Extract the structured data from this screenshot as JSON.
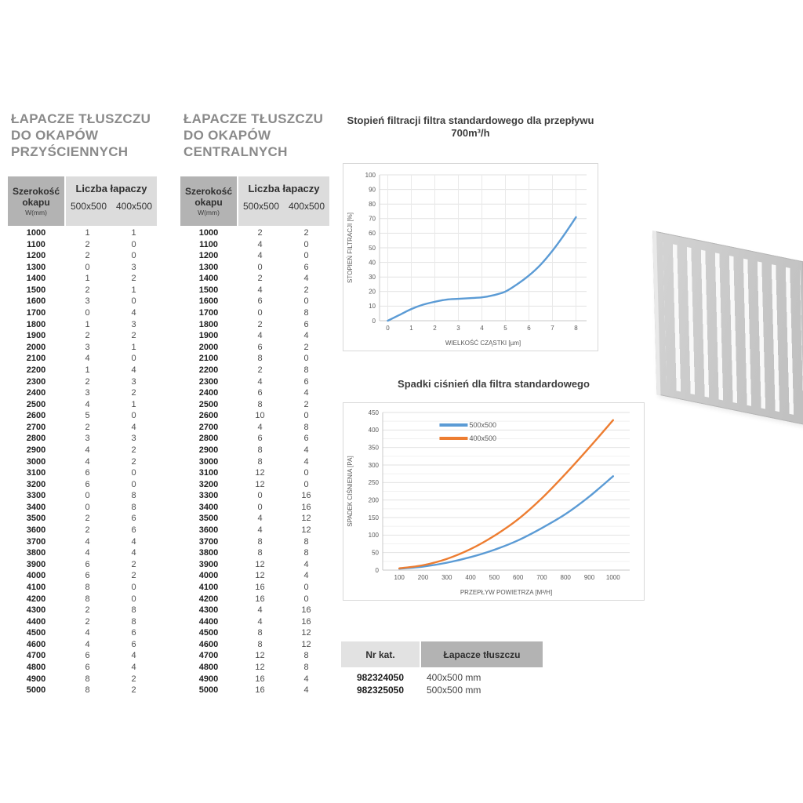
{
  "tables": [
    {
      "title": "ŁAPACZE TŁUSZCZU\nDO OKAPÓW\nPRZYŚCIENNYCH",
      "header": {
        "col1_line1": "Szerokość",
        "col1_line2": "okapu",
        "col1_line3": "W(mm)",
        "group": "Liczba łapaczy",
        "sub1": "500x500",
        "sub2": "400x500"
      },
      "rows": [
        [
          1000,
          1,
          1
        ],
        [
          1100,
          2,
          0
        ],
        [
          1200,
          2,
          0
        ],
        [
          1300,
          0,
          3
        ],
        [
          1400,
          1,
          2
        ],
        [
          1500,
          2,
          1
        ],
        [
          1600,
          3,
          0
        ],
        [
          1700,
          0,
          4
        ],
        [
          1800,
          1,
          3
        ],
        [
          1900,
          2,
          2
        ],
        [
          2000,
          3,
          1
        ],
        [
          2100,
          4,
          0
        ],
        [
          2200,
          1,
          4
        ],
        [
          2300,
          2,
          3
        ],
        [
          2400,
          3,
          2
        ],
        [
          2500,
          4,
          1
        ],
        [
          2600,
          5,
          0
        ],
        [
          2700,
          2,
          4
        ],
        [
          2800,
          3,
          3
        ],
        [
          2900,
          4,
          2
        ],
        [
          3000,
          4,
          2
        ],
        [
          3100,
          6,
          0
        ],
        [
          3200,
          6,
          0
        ],
        [
          3300,
          0,
          8
        ],
        [
          3400,
          0,
          8
        ],
        [
          3500,
          2,
          6
        ],
        [
          3600,
          2,
          6
        ],
        [
          3700,
          4,
          4
        ],
        [
          3800,
          4,
          4
        ],
        [
          3900,
          6,
          2
        ],
        [
          4000,
          6,
          2
        ],
        [
          4100,
          8,
          0
        ],
        [
          4200,
          8,
          0
        ],
        [
          4300,
          2,
          8
        ],
        [
          4400,
          2,
          8
        ],
        [
          4500,
          4,
          6
        ],
        [
          4600,
          4,
          6
        ],
        [
          4700,
          6,
          4
        ],
        [
          4800,
          6,
          4
        ],
        [
          4900,
          8,
          2
        ],
        [
          5000,
          8,
          2
        ]
      ]
    },
    {
      "title": "ŁAPACZE TŁUSZCZU\nDO OKAPÓW\nCENTRALNYCH",
      "header": {
        "col1_line1": "Szerokość",
        "col1_line2": "okapu",
        "col1_line3": "W(mm)",
        "group": "Liczba łapaczy",
        "sub1": "500x500",
        "sub2": "400x500"
      },
      "rows": [
        [
          1000,
          2,
          2
        ],
        [
          1100,
          4,
          0
        ],
        [
          1200,
          4,
          0
        ],
        [
          1300,
          0,
          6
        ],
        [
          1400,
          2,
          4
        ],
        [
          1500,
          4,
          2
        ],
        [
          1600,
          6,
          0
        ],
        [
          1700,
          0,
          8
        ],
        [
          1800,
          2,
          6
        ],
        [
          1900,
          4,
          4
        ],
        [
          2000,
          6,
          2
        ],
        [
          2100,
          8,
          0
        ],
        [
          2200,
          2,
          8
        ],
        [
          2300,
          4,
          6
        ],
        [
          2400,
          6,
          4
        ],
        [
          2500,
          8,
          2
        ],
        [
          2600,
          10,
          0
        ],
        [
          2700,
          4,
          8
        ],
        [
          2800,
          6,
          6
        ],
        [
          2900,
          8,
          4
        ],
        [
          3000,
          8,
          4
        ],
        [
          3100,
          12,
          0
        ],
        [
          3200,
          12,
          0
        ],
        [
          3300,
          0,
          16
        ],
        [
          3400,
          0,
          16
        ],
        [
          3500,
          4,
          12
        ],
        [
          3600,
          4,
          12
        ],
        [
          3700,
          8,
          8
        ],
        [
          3800,
          8,
          8
        ],
        [
          3900,
          12,
          4
        ],
        [
          4000,
          12,
          4
        ],
        [
          4100,
          16,
          0
        ],
        [
          4200,
          16,
          0
        ],
        [
          4300,
          4,
          16
        ],
        [
          4400,
          4,
          16
        ],
        [
          4500,
          8,
          12
        ],
        [
          4600,
          8,
          12
        ],
        [
          4700,
          12,
          8
        ],
        [
          4800,
          12,
          8
        ],
        [
          4900,
          16,
          4
        ],
        [
          5000,
          16,
          4
        ]
      ]
    }
  ],
  "chart_data": [
    {
      "type": "line",
      "title": "Stopień filtracji filtra standardowego dla przepływu 700m³/h",
      "xlabel": "WIELKOŚĆ CZĄSTKI [µm]",
      "ylabel": "STOPIEŃ FILTRACJI [%]",
      "xlim": [
        -0.35,
        8.45
      ],
      "ylim": [
        0,
        100
      ],
      "xticks": [
        0,
        1,
        2,
        3,
        4,
        5,
        6,
        7,
        8
      ],
      "yticks": [
        0,
        10,
        20,
        30,
        40,
        50,
        60,
        70,
        80,
        90,
        100
      ],
      "grid_vertical": true,
      "legend": false,
      "series": [
        {
          "name": "",
          "color": "#5B9BD5",
          "x": [
            0,
            0.5,
            1,
            1.5,
            2,
            2.5,
            3,
            3.5,
            4,
            4.5,
            5,
            5.5,
            6,
            6.5,
            7,
            7.5,
            8
          ],
          "y": [
            0,
            4,
            8,
            11,
            13,
            14.5,
            15,
            15.5,
            16,
            17.5,
            20,
            25,
            31,
            38.5,
            48,
            59,
            71
          ]
        }
      ]
    },
    {
      "type": "line",
      "title": "Spadki ciśnień dla filtra standardowego",
      "xlabel": "PRZEPŁYW POWIETRZA [M³/H]",
      "ylabel": "SPADEK CIŚNIENIA [PA]",
      "xlim": [
        30,
        1070
      ],
      "ylim": [
        0,
        450
      ],
      "xticks": [
        100,
        200,
        300,
        400,
        500,
        600,
        700,
        800,
        900,
        1000
      ],
      "yticks": [
        0,
        50,
        100,
        150,
        200,
        250,
        300,
        350,
        400,
        450
      ],
      "yminor": 25,
      "grid_vertical": false,
      "legend": true,
      "series": [
        {
          "name": "500x500",
          "color": "#5B9BD5",
          "x": [
            100,
            200,
            300,
            400,
            500,
            600,
            700,
            800,
            900,
            1000
          ],
          "y": [
            4,
            10,
            21,
            37,
            58,
            85,
            120,
            160,
            210,
            268
          ]
        },
        {
          "name": "400x500",
          "color": "#ED7D31",
          "x": [
            100,
            200,
            300,
            400,
            500,
            600,
            700,
            800,
            900,
            1000
          ],
          "y": [
            5,
            14,
            32,
            60,
            98,
            145,
            205,
            275,
            350,
            428
          ]
        }
      ]
    }
  ],
  "catalog": {
    "headers": [
      "Nr kat.",
      "Łapacze tłuszczu"
    ],
    "rows": [
      [
        "982324050",
        "400x500 mm"
      ],
      [
        "982325050",
        "500x500 mm"
      ]
    ]
  }
}
